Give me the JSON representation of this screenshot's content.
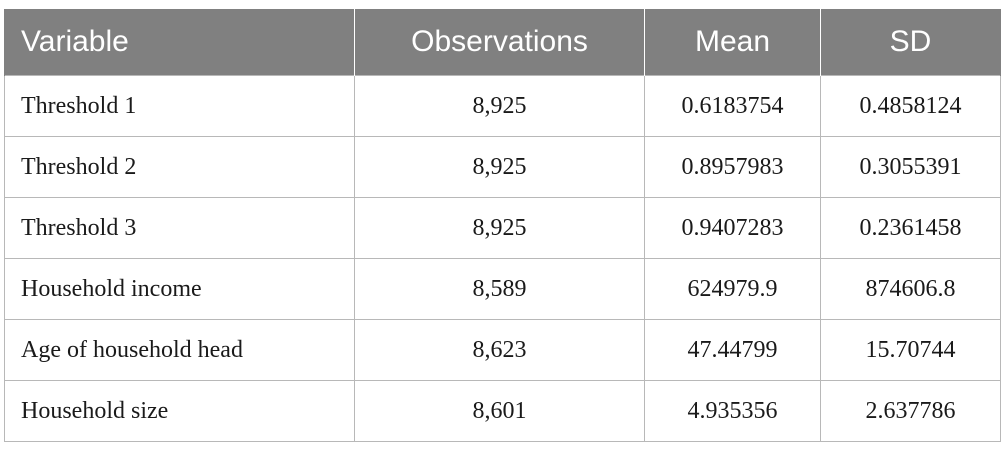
{
  "table": {
    "headers": [
      "Variable",
      "Observations",
      "Mean",
      "SD"
    ],
    "rows": [
      [
        "Threshold 1",
        "8,925",
        "0.6183754",
        "0.4858124"
      ],
      [
        "Threshold 2",
        "8,925",
        "0.8957983",
        "0.3055391"
      ],
      [
        "Threshold 3",
        "8,925",
        "0.9407283",
        "0.2361458"
      ],
      [
        "Household income",
        "8,589",
        "624979.9",
        "874606.8"
      ],
      [
        "Age of household head",
        "8,623",
        "47.44799",
        "15.70744"
      ],
      [
        "Household size",
        "8,601",
        "4.935356",
        "2.637786"
      ]
    ]
  },
  "colors": {
    "header_bg": "#808080",
    "header_text": "#ffffff",
    "border": "#b8b8b8",
    "cell_text": "#1a1a1a"
  }
}
